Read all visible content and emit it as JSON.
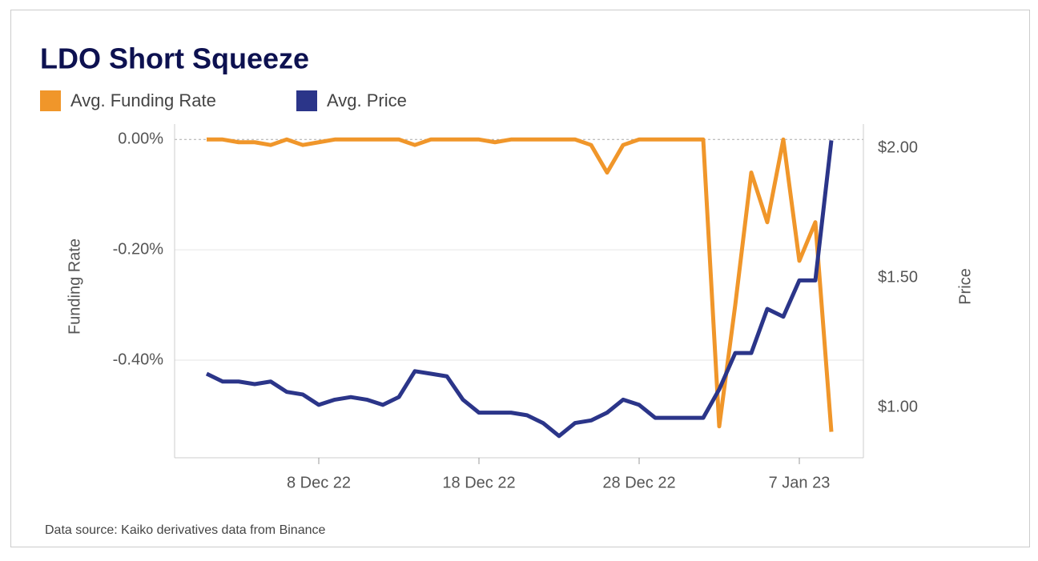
{
  "chart_data": {
    "type": "line",
    "title": "LDO Short Squeeze",
    "source": "Data source: Kaiko derivatives data from Binance",
    "y_label": "Funding Rate",
    "y2_label": "Price",
    "x": [
      "2022-12-01",
      "2022-12-02",
      "2022-12-03",
      "2022-12-04",
      "2022-12-05",
      "2022-12-06",
      "2022-12-07",
      "2022-12-08",
      "2022-12-09",
      "2022-12-10",
      "2022-12-11",
      "2022-12-12",
      "2022-12-13",
      "2022-12-14",
      "2022-12-15",
      "2022-12-16",
      "2022-12-17",
      "2022-12-18",
      "2022-12-19",
      "2022-12-20",
      "2022-12-21",
      "2022-12-22",
      "2022-12-23",
      "2022-12-24",
      "2022-12-25",
      "2022-12-26",
      "2022-12-27",
      "2022-12-28",
      "2022-12-29",
      "2022-12-30",
      "2022-12-31",
      "2023-01-01",
      "2023-01-02",
      "2023-01-03",
      "2023-01-04",
      "2023-01-05",
      "2023-01-06",
      "2023-01-07",
      "2023-01-08",
      "2023-01-09"
    ],
    "xlim": [
      "2022-11-29",
      "2023-01-11"
    ],
    "xticks": [
      {
        "value": "2022-12-08",
        "label": "8 Dec 22"
      },
      {
        "value": "2022-12-18",
        "label": "18 Dec 22"
      },
      {
        "value": "2022-12-28",
        "label": "28 Dec 22"
      },
      {
        "value": "2023-01-07",
        "label": "7 Jan 23"
      }
    ],
    "ylim": [
      -0.577,
      0.028
    ],
    "yticks": [
      {
        "value": 0,
        "label": "0.00%"
      },
      {
        "value": -0.2,
        "label": "-0.20%"
      },
      {
        "value": -0.4,
        "label": "-0.40%"
      }
    ],
    "y2lim": [
      0.806,
      2.093
    ],
    "y2ticks": [
      {
        "value": 1,
        "label": "$1.00"
      },
      {
        "value": 1.5,
        "label": "$1.50"
      },
      {
        "value": 2,
        "label": "$2.00"
      }
    ],
    "grid": true,
    "series": [
      {
        "name": "Avg. Funding Rate",
        "color": "#f0962a",
        "values": [
          0,
          0,
          -0.005,
          -0.005,
          -0.01,
          0,
          -0.01,
          -0.005,
          0,
          0,
          0,
          0,
          0,
          -0.01,
          0,
          0,
          0,
          0,
          -0.005,
          0,
          0,
          0,
          0,
          0,
          -0.01,
          -0.06,
          -0.01,
          0,
          0,
          0,
          0,
          0,
          -0.52,
          -0.3,
          -0.06,
          -0.15,
          0,
          -0.22,
          -0.15,
          -0.53
        ]
      },
      {
        "name": "Avg. Price",
        "color": "#2b3589",
        "axis": "y2",
        "values": [
          1.13,
          1.1,
          1.1,
          1.09,
          1.1,
          1.06,
          1.05,
          1.01,
          1.03,
          1.04,
          1.03,
          1.01,
          1.04,
          1.14,
          1.13,
          1.12,
          1.03,
          0.98,
          0.98,
          0.98,
          0.97,
          0.94,
          0.89,
          0.94,
          0.95,
          0.98,
          1.03,
          1.01,
          0.96,
          0.96,
          0.96,
          0.96,
          1.07,
          1.21,
          1.21,
          1.38,
          1.35,
          1.49,
          1.49,
          2.03
        ]
      }
    ]
  }
}
